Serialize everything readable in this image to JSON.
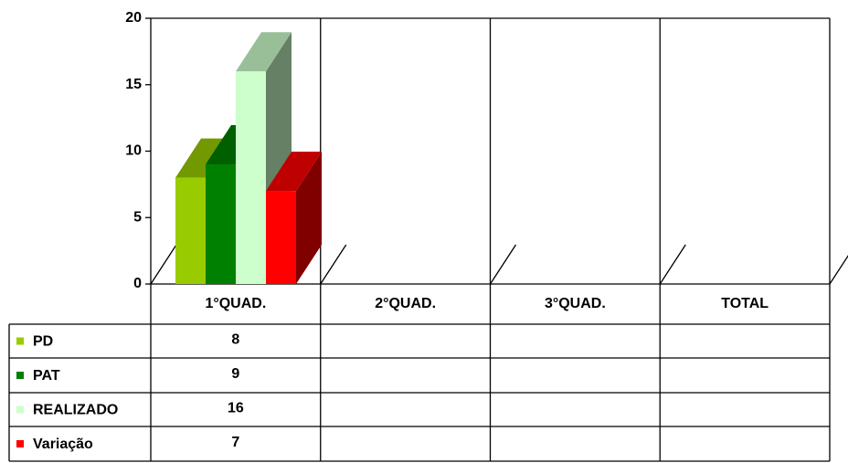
{
  "chart_data": {
    "type": "bar3d",
    "categories": [
      "1°QUAD.",
      "2°QUAD.",
      "3°QUAD.",
      "TOTAL"
    ],
    "series": [
      {
        "name": "PD",
        "color": "#99cc00",
        "values": [
          8,
          null,
          null,
          null
        ]
      },
      {
        "name": "PAT",
        "color": "#008000",
        "values": [
          9,
          null,
          null,
          null
        ]
      },
      {
        "name": "REALIZADO",
        "color": "#ccffcc",
        "values": [
          16,
          null,
          null,
          null
        ]
      },
      {
        "name": "Variação",
        "color": "#ff0000",
        "values": [
          7,
          null,
          null,
          null
        ]
      }
    ],
    "ylim": [
      0,
      20
    ],
    "yticks": [
      0,
      5,
      10,
      15,
      20
    ],
    "data_table": true
  }
}
